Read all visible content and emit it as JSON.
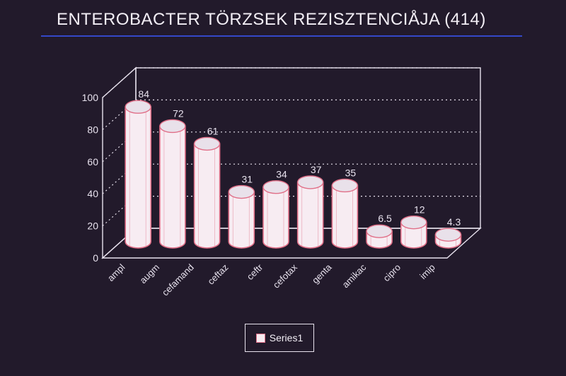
{
  "chart_data": {
    "type": "bar",
    "title": "ENTEROBACTER TÖRZSEK REZISZTENCIÅJA (414)",
    "categories": [
      "ampl",
      "augm",
      "cefamand",
      "ceftaz",
      "ceftr",
      "cefotax",
      "genta",
      "amikac",
      "cipro",
      "imip"
    ],
    "series": [
      {
        "name": "Series1",
        "values": [
          84,
          72,
          61,
          31,
          34,
          37,
          35,
          6.5,
          12,
          4.3
        ],
        "labels": [
          "84",
          "72",
          "61",
          "31",
          "34",
          "37",
          "35",
          "6.5",
          "12",
          "4.3"
        ]
      }
    ],
    "yticks": [
      "0",
      "20",
      "40",
      "60",
      "80",
      "100"
    ],
    "ylim": [
      0,
      100
    ],
    "grid": true,
    "legend": "bottom-center",
    "colors": {
      "background": "#221a2b",
      "bar_fill": "#f7ecf2",
      "bar_edge": "#e06f88",
      "axis": "#e8e2ee",
      "title_rule": "#3448c8"
    }
  }
}
